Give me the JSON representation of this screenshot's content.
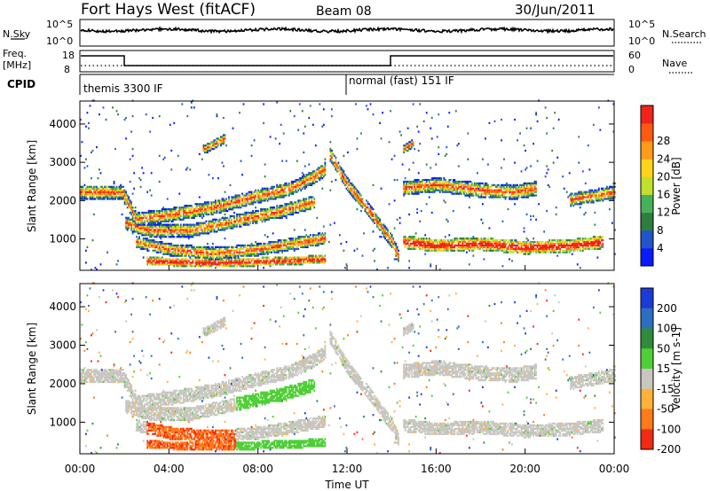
{
  "header": {
    "station": "Fort Hays West (fitACF)",
    "beam": "Beam 08",
    "date": "30/Jun/2011"
  },
  "nsky_panel": {
    "left_label": "N.Sky",
    "right_label": "N.Search",
    "left_ticks": [
      "10^5",
      "10^0"
    ],
    "right_ticks": [
      "10^5",
      "10^0"
    ]
  },
  "freq_panel": {
    "left_label_1": "Freq.",
    "left_label_2": "[MHz]",
    "right_label": "Nave",
    "left_ticks": [
      "18",
      "8"
    ],
    "right_ticks": [
      "60",
      "0"
    ]
  },
  "cpid_panel": {
    "label": "CPID",
    "mode_1": "themis 3300 IF",
    "mode_2": "normal (fast) 151 IF"
  },
  "chart_data": [
    {
      "type": "heatmap",
      "name": "power",
      "ylabel": "Slant Range [km]",
      "yticks": [
        "1000",
        "2000",
        "3000",
        "4000"
      ],
      "colorbar_label": "Power [dB]",
      "colorbar_ticks": [
        "4",
        "8",
        "12",
        "16",
        "20",
        "24",
        "28"
      ],
      "colors": [
        "#0a1bff",
        "#2255c9",
        "#2f7d3f",
        "#47b05a",
        "#bfe02c",
        "#ffd31a",
        "#ff9a1a",
        "#ff5a12",
        "#f0241a"
      ]
    },
    {
      "type": "heatmap",
      "name": "velocity",
      "ylabel": "Slant Range [km]",
      "yticks": [
        "1000",
        "2000",
        "3000",
        "4000"
      ],
      "colorbar_label": "Velocity [m s-1]",
      "colorbar_ticks": [
        "200",
        "100",
        "50",
        "15",
        "-15",
        "-50",
        "-100",
        "-200"
      ],
      "colors": [
        "#1c3bd6",
        "#2d6fbf",
        "#2f8c3a",
        "#4fcf36",
        "#c8c6c0",
        "#ffb23a",
        "#ff7a18",
        "#f22a12"
      ],
      "xlabel": "Time UT",
      "xticks": [
        "00:00",
        "04:00",
        "08:00",
        "12:00",
        "16:00",
        "20:00",
        "00:00"
      ]
    }
  ]
}
